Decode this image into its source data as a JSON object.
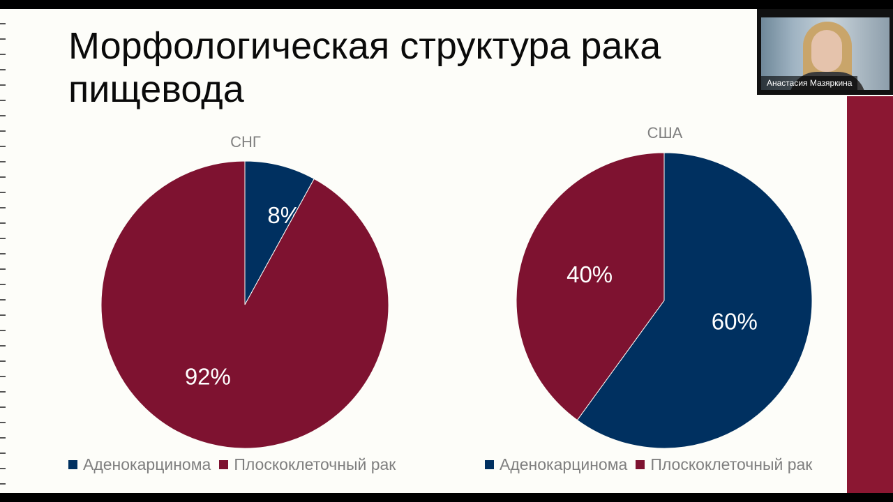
{
  "slide": {
    "title": "Морфологическая структура рака\nпищевода",
    "accent_color": "#8b1732"
  },
  "video": {
    "participant_name": "Анастасия Мазяркина"
  },
  "chart_data": [
    {
      "type": "pie",
      "title": "СНГ",
      "start_angle_deg": 0,
      "categories": [
        "Аденокарцинома",
        "Плоскоклеточный рак"
      ],
      "values": [
        8,
        92
      ],
      "data_labels": [
        "8%",
        "92%"
      ],
      "colors": [
        "#003060",
        "#7e1230"
      ],
      "legend": "bottom"
    },
    {
      "type": "pie",
      "title": "США",
      "start_angle_deg": 0,
      "categories": [
        "Аденокарцинома",
        "Плоскоклеточный рак"
      ],
      "values": [
        60,
        40
      ],
      "data_labels": [
        "60%",
        "40%"
      ],
      "colors": [
        "#003060",
        "#7e1230"
      ],
      "legend": "bottom"
    }
  ]
}
